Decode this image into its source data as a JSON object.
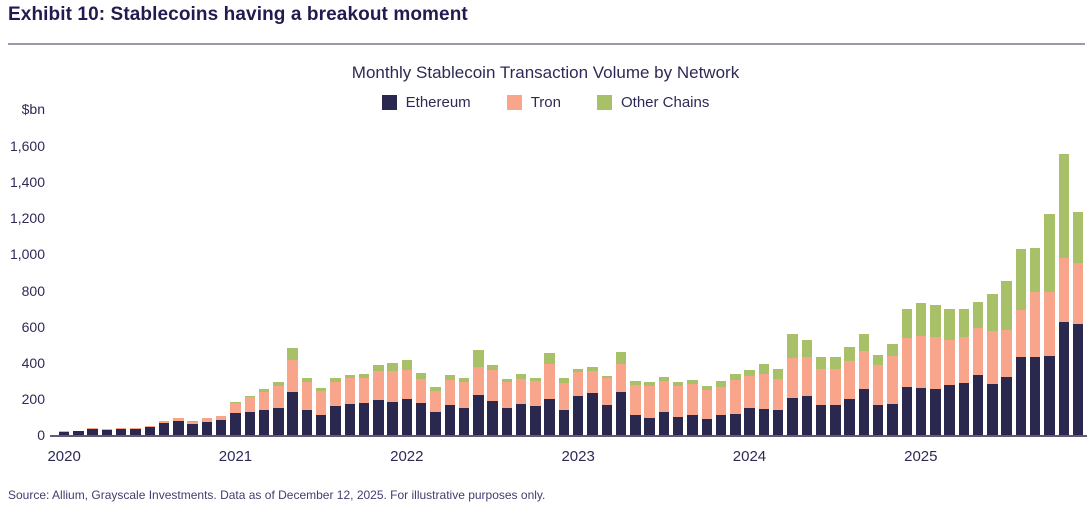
{
  "page": {
    "exhibit_title": "Exhibit 10: Stablecoins having a breakout moment",
    "source_note": "Source: Allium, Grayscale Investments. Data as of December 12, 2025. For illustrative purposes only."
  },
  "colors": {
    "ethereum": "#2a284f",
    "tron": "#f8a58c",
    "other_chains": "#a8c168",
    "title_text": "#221b50",
    "axis_text": "#2d2a56",
    "axis_line": "#5f5b76",
    "rule": "#9b99ab",
    "source_text": "#453c70"
  },
  "chart_data": {
    "type": "bar",
    "stacked": true,
    "title": "Monthly Stablecoin Transaction Volume by Network",
    "y_unit": "$bn",
    "ylim": [
      0,
      1600
    ],
    "grid": false,
    "legend_position": "top-center",
    "y_tick_labels": [
      "0",
      "200",
      "400",
      "600",
      "800",
      "1,000",
      "1,200",
      "1,400",
      "1,600"
    ],
    "x_tick_labels": [
      "2020",
      "2021",
      "2022",
      "2023",
      "2024",
      "2025"
    ],
    "months": [
      "2020-01",
      "2020-02",
      "2020-03",
      "2020-04",
      "2020-05",
      "2020-06",
      "2020-07",
      "2020-08",
      "2020-09",
      "2020-10",
      "2020-11",
      "2020-12",
      "2021-01",
      "2021-02",
      "2021-03",
      "2021-04",
      "2021-05",
      "2021-06",
      "2021-07",
      "2021-08",
      "2021-09",
      "2021-10",
      "2021-11",
      "2021-12",
      "2022-01",
      "2022-02",
      "2022-03",
      "2022-04",
      "2022-05",
      "2022-06",
      "2022-07",
      "2022-08",
      "2022-09",
      "2022-10",
      "2022-11",
      "2022-12",
      "2023-01",
      "2023-02",
      "2023-03",
      "2023-04",
      "2023-05",
      "2023-06",
      "2023-07",
      "2023-08",
      "2023-09",
      "2023-10",
      "2023-11",
      "2023-12",
      "2024-01",
      "2024-02",
      "2024-03",
      "2024-04",
      "2024-05",
      "2024-06",
      "2024-07",
      "2024-08",
      "2024-09",
      "2024-10",
      "2024-11",
      "2024-12",
      "2025-01",
      "2025-02",
      "2025-03",
      "2025-04",
      "2025-05",
      "2025-06",
      "2025-07",
      "2025-08",
      "2025-09",
      "2025-10",
      "2025-11",
      "2025-12"
    ],
    "series": [
      {
        "name": "Ethereum",
        "color_key": "ethereum",
        "values": [
          18,
          22,
          33,
          27,
          34,
          33,
          45,
          64,
          75,
          61,
          74,
          83,
          124,
          129,
          137,
          151,
          240,
          137,
          111,
          161,
          170,
          179,
          192,
          185,
          199,
          175,
          126,
          166,
          148,
          220,
          190,
          148,
          170,
          162,
          200,
          140,
          214,
          231,
          166,
          240,
          111,
          92,
          126,
          98,
          111,
          89,
          111,
          116,
          148,
          142,
          137,
          207,
          216,
          164,
          164,
          201,
          257,
          164,
          170,
          265,
          260,
          255,
          275,
          290,
          335,
          285,
          320,
          430,
          430,
          435,
          625,
          615
        ]
      },
      {
        "name": "Tron",
        "color_key": "tron",
        "values": [
          2,
          2,
          4,
          4,
          5,
          6,
          7,
          15,
          17,
          13,
          18,
          22,
          55,
          81,
          102,
          120,
          175,
          157,
          133,
          135,
          144,
          139,
          162,
          170,
          161,
          135,
          118,
          139,
          144,
          155,
          170,
          148,
          140,
          137,
          195,
          150,
          133,
          126,
          148,
          153,
          166,
          177,
          175,
          175,
          172,
          161,
          153,
          190,
          177,
          194,
          172,
          222,
          218,
          199,
          200,
          209,
          209,
          223,
          268,
          270,
          290,
          285,
          250,
          255,
          255,
          290,
          260,
          260,
          360,
          355,
          355,
          340
        ]
      },
      {
        "name": "Other Chains",
        "color_key": "other_chains",
        "values": [
          0,
          0,
          0,
          0,
          0,
          0,
          0,
          0,
          0,
          2,
          0,
          2,
          6,
          6,
          15,
          22,
          68,
          24,
          18,
          18,
          18,
          22,
          33,
          46,
          55,
          31,
          24,
          28,
          26,
          95,
          30,
          15,
          26,
          18,
          60,
          25,
          18,
          18,
          15,
          68,
          24,
          26,
          22,
          22,
          24,
          24,
          37,
          31,
          37,
          55,
          55,
          129,
          92,
          70,
          70,
          79,
          92,
          54,
          65,
          165,
          180,
          180,
          170,
          155,
          145,
          205,
          275,
          340,
          245,
          435,
          575,
          280
        ]
      }
    ]
  }
}
